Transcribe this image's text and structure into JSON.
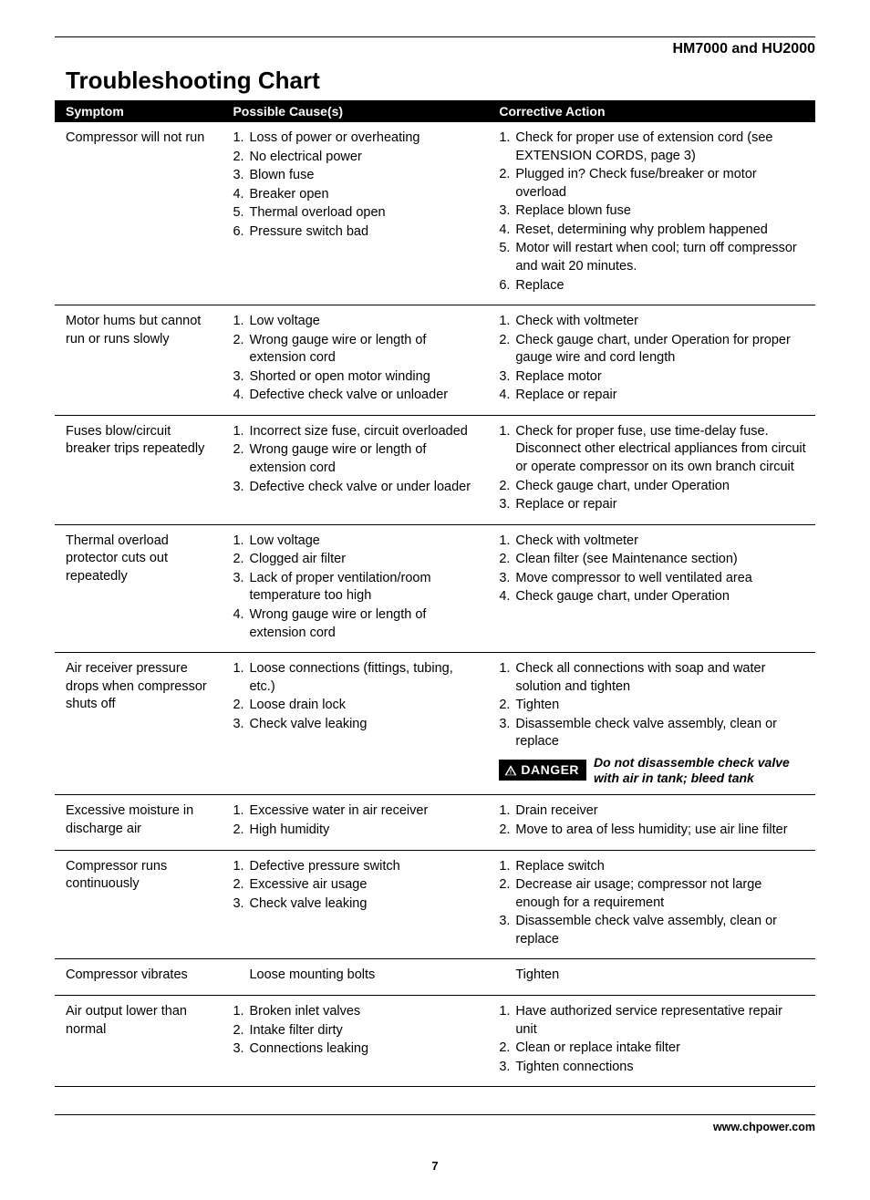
{
  "header": {
    "model": "HM7000 and HU2000"
  },
  "title": "Troubleshooting Chart",
  "table": {
    "columns": [
      "Symptom",
      "Possible Cause(s)",
      "Corrective Action"
    ],
    "rows": [
      {
        "symptom": "Compressor will not run",
        "causes": [
          "Loss of power or overheating",
          "No electrical power",
          "Blown fuse",
          "Breaker open",
          "Thermal overload open",
          "Pressure switch bad"
        ],
        "actions": [
          "Check for proper use of extension cord (see EXTENSION CORDS, page 3)",
          "Plugged in? Check fuse/breaker or motor overload",
          "Replace blown fuse",
          "Reset, determining why problem happened",
          "Motor will restart when cool; turn off compressor and wait 20 minutes.",
          "Replace"
        ],
        "numbered": true
      },
      {
        "symptom": "Motor hums but cannot run or runs slowly",
        "causes": [
          "Low voltage",
          "Wrong gauge wire or length of extension cord",
          "Shorted or open motor winding",
          "Defective check valve or unloader"
        ],
        "actions": [
          "Check with voltmeter",
          "Check gauge chart, under Operation for proper gauge wire and cord length",
          "Replace motor",
          "Replace or repair"
        ],
        "numbered": true
      },
      {
        "symptom": "Fuses blow/circuit breaker trips repeatedly",
        "causes": [
          "Incorrect size fuse, circuit overloaded",
          "Wrong gauge wire or length of extension cord",
          "Defective check valve or under loader"
        ],
        "actions": [
          "Check for proper fuse, use time-delay fuse. Disconnect other electrical appliances from circuit or operate compressor on its own branch circuit",
          "Check gauge chart, under Operation",
          "Replace or repair"
        ],
        "numbered": true
      },
      {
        "symptom": "Thermal overload protector cuts out repeatedly",
        "causes": [
          "Low voltage",
          "Clogged air filter",
          "Lack of proper ventilation/room temperature too high",
          "Wrong gauge wire or length of extension cord"
        ],
        "actions": [
          "Check with voltmeter",
          "Clean filter (see Maintenance section)",
          "Move compressor to well ventilated area",
          "Check gauge chart, under Operation"
        ],
        "numbered": true
      },
      {
        "symptom": "Air receiver pressure drops when compressor shuts off",
        "causes": [
          "Loose connections (fittings, tubing, etc.)",
          "Loose drain lock",
          "Check valve leaking"
        ],
        "actions": [
          "Check all connections with soap and water solution and tighten",
          "Tighten",
          "Disassemble check valve assembly, clean or replace"
        ],
        "numbered": true,
        "danger": {
          "label": "DANGER",
          "text": "Do not disassemble check valve with air in tank; bleed tank"
        }
      },
      {
        "symptom": "Excessive moisture in discharge air",
        "causes": [
          "Excessive water in air receiver",
          "High humidity"
        ],
        "actions": [
          "Drain receiver",
          "Move to area of less humidity; use air line filter"
        ],
        "numbered": true
      },
      {
        "symptom": "Compressor runs continuously",
        "causes": [
          "Defective pressure switch",
          "Excessive air usage",
          "Check valve leaking"
        ],
        "actions": [
          "Replace switch",
          "Decrease air usage; compressor not large enough for a requirement",
          "Disassemble check valve assembly, clean or replace"
        ],
        "numbered": true
      },
      {
        "symptom": "Compressor vibrates",
        "causes": [
          "Loose mounting bolts"
        ],
        "actions": [
          "Tighten"
        ],
        "numbered": false
      },
      {
        "symptom": "Air output lower than normal",
        "causes": [
          "Broken inlet valves",
          "Intake filter dirty",
          "Connections leaking"
        ],
        "actions": [
          "Have authorized service representative repair unit",
          "Clean or replace intake filter",
          "Tighten connections"
        ],
        "numbered": true
      }
    ]
  },
  "footer": {
    "url": "www.chpower.com",
    "page": "7"
  },
  "colors": {
    "ink": "#000000",
    "paper": "#ffffff"
  }
}
